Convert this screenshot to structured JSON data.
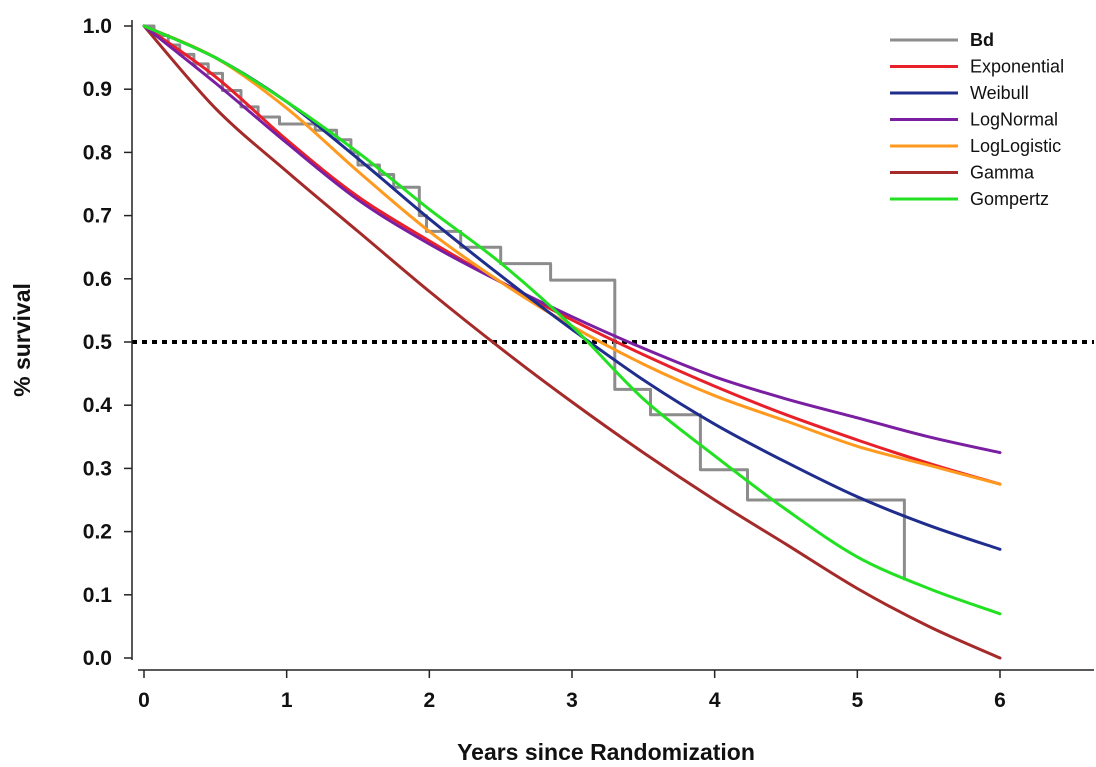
{
  "chart_data": {
    "type": "line",
    "title": "",
    "xlabel": "Years since Randomization",
    "ylabel": "% survival",
    "xlim": [
      0,
      6.6
    ],
    "ylim": [
      0,
      1.0
    ],
    "x_ticks": [
      "0",
      "1",
      "2",
      "3",
      "4",
      "5",
      "6"
    ],
    "y_ticks": [
      "0.0",
      "0.1",
      "0.2",
      "0.3",
      "0.4",
      "0.5",
      "0.6",
      "0.7",
      "0.8",
      "0.9",
      "1.0"
    ],
    "grid": false,
    "legend_position": "top-right",
    "reference_line": {
      "y": 0.5,
      "style": "dotted",
      "color": "#000000"
    },
    "series": [
      {
        "name": "Bd",
        "color": "#8c8c8c",
        "kind": "step",
        "points": [
          [
            0,
            1.0
          ],
          [
            0.07,
            0.985
          ],
          [
            0.17,
            0.97
          ],
          [
            0.25,
            0.955
          ],
          [
            0.35,
            0.94
          ],
          [
            0.45,
            0.925
          ],
          [
            0.55,
            0.898
          ],
          [
            0.68,
            0.872
          ],
          [
            0.8,
            0.856
          ],
          [
            0.95,
            0.845
          ],
          [
            1.1,
            0.845
          ],
          [
            1.2,
            0.835
          ],
          [
            1.3,
            0.835
          ],
          [
            1.35,
            0.82
          ],
          [
            1.45,
            0.8
          ],
          [
            1.5,
            0.78
          ],
          [
            1.65,
            0.765
          ],
          [
            1.75,
            0.745
          ],
          [
            1.93,
            0.7
          ],
          [
            1.98,
            0.675
          ],
          [
            2.22,
            0.65
          ],
          [
            2.5,
            0.624
          ],
          [
            2.85,
            0.598
          ],
          [
            3.3,
            0.425
          ],
          [
            3.55,
            0.385
          ],
          [
            3.9,
            0.298
          ],
          [
            4.23,
            0.25
          ],
          [
            5.33,
            0.125
          ]
        ]
      },
      {
        "name": "Exponential",
        "color": "#e8202a",
        "points": [
          [
            0,
            1.0
          ],
          [
            0.5,
            0.92
          ],
          [
            1,
            0.82
          ],
          [
            1.5,
            0.73
          ],
          [
            2,
            0.66
          ],
          [
            2.5,
            0.595
          ],
          [
            3,
            0.535
          ],
          [
            3.5,
            0.48
          ],
          [
            4,
            0.43
          ],
          [
            4.5,
            0.385
          ],
          [
            5,
            0.345
          ],
          [
            5.5,
            0.308
          ],
          [
            6,
            0.275
          ]
        ]
      },
      {
        "name": "Weibull",
        "color": "#1f2d8c",
        "points": [
          [
            0,
            1.0
          ],
          [
            0.5,
            0.95
          ],
          [
            1,
            0.88
          ],
          [
            1.5,
            0.79
          ],
          [
            2,
            0.695
          ],
          [
            2.5,
            0.605
          ],
          [
            3,
            0.52
          ],
          [
            3.5,
            0.44
          ],
          [
            4,
            0.37
          ],
          [
            4.5,
            0.31
          ],
          [
            5,
            0.255
          ],
          [
            5.5,
            0.21
          ],
          [
            6,
            0.172
          ]
        ]
      },
      {
        "name": "LogNormal",
        "color": "#7b1fa2",
        "points": [
          [
            0,
            1.0
          ],
          [
            0.5,
            0.91
          ],
          [
            1,
            0.815
          ],
          [
            1.5,
            0.725
          ],
          [
            2,
            0.655
          ],
          [
            2.5,
            0.595
          ],
          [
            3,
            0.54
          ],
          [
            3.5,
            0.49
          ],
          [
            4,
            0.445
          ],
          [
            4.5,
            0.41
          ],
          [
            5,
            0.38
          ],
          [
            5.5,
            0.35
          ],
          [
            6,
            0.325
          ]
        ]
      },
      {
        "name": "LogLogistic",
        "color": "#ff9a1f",
        "points": [
          [
            0,
            1.0
          ],
          [
            0.5,
            0.95
          ],
          [
            1,
            0.87
          ],
          [
            1.5,
            0.77
          ],
          [
            2,
            0.675
          ],
          [
            2.5,
            0.595
          ],
          [
            3,
            0.525
          ],
          [
            3.5,
            0.465
          ],
          [
            4,
            0.415
          ],
          [
            4.5,
            0.375
          ],
          [
            5,
            0.335
          ],
          [
            5.5,
            0.305
          ],
          [
            6,
            0.275
          ]
        ]
      },
      {
        "name": "Gamma",
        "color": "#a52a2a",
        "points": [
          [
            0,
            1.0
          ],
          [
            0.5,
            0.87
          ],
          [
            1,
            0.77
          ],
          [
            1.5,
            0.675
          ],
          [
            2,
            0.58
          ],
          [
            2.5,
            0.49
          ],
          [
            3,
            0.405
          ],
          [
            3.5,
            0.325
          ],
          [
            4,
            0.25
          ],
          [
            4.5,
            0.18
          ],
          [
            5,
            0.11
          ],
          [
            5.5,
            0.05
          ],
          [
            6,
            0.0
          ]
        ]
      },
      {
        "name": "Gompertz",
        "color": "#22e122",
        "points": [
          [
            0,
            1.0
          ],
          [
            0.5,
            0.95
          ],
          [
            1,
            0.88
          ],
          [
            1.5,
            0.8
          ],
          [
            2,
            0.71
          ],
          [
            2.5,
            0.625
          ],
          [
            3,
            0.525
          ],
          [
            3.5,
            0.41
          ],
          [
            4,
            0.32
          ],
          [
            4.5,
            0.235
          ],
          [
            5,
            0.16
          ],
          [
            5.5,
            0.11
          ],
          [
            6,
            0.07
          ]
        ]
      }
    ]
  }
}
